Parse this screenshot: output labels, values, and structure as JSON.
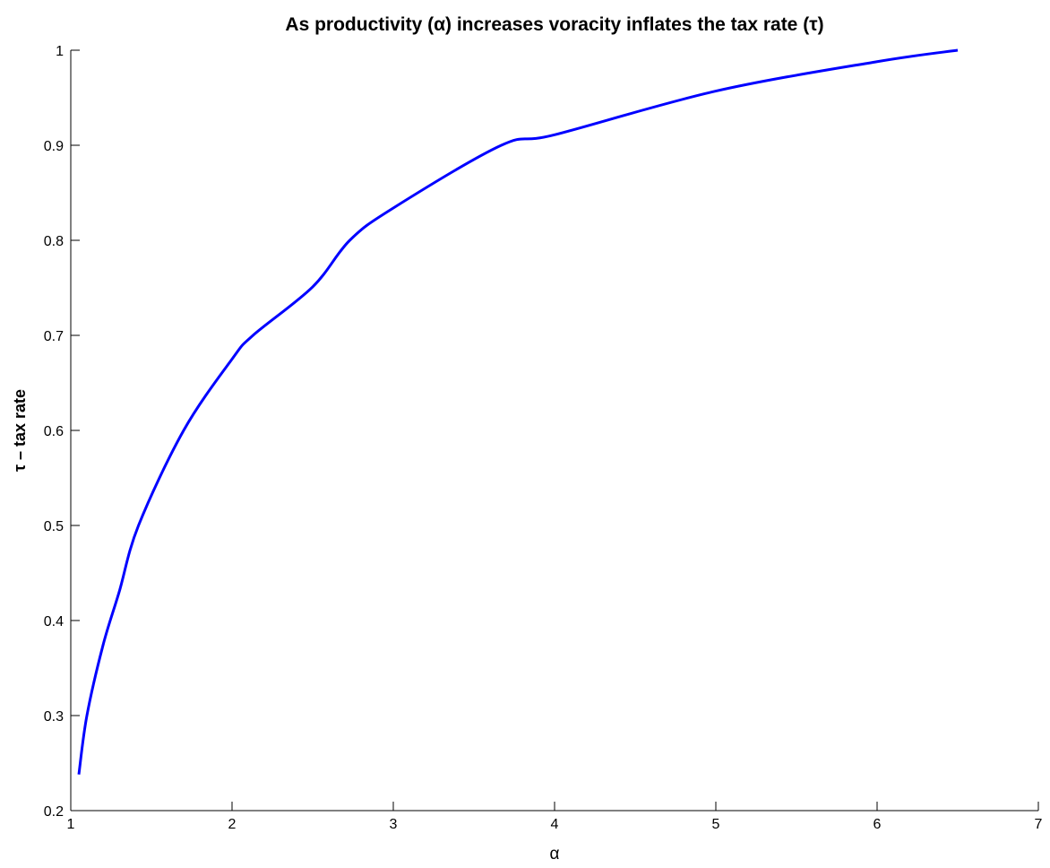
{
  "chart_data": {
    "type": "line",
    "title": "As productivity (α) increases voracity inflates the tax rate (τ)",
    "x_label": "α",
    "y_label": "τ – tax rate",
    "x": [
      1.05,
      1.1,
      1.2,
      1.3,
      1.42,
      1.7,
      2,
      2.13,
      2.5,
      2.73,
      3,
      3.67,
      4,
      5,
      6,
      6.5
    ],
    "series": [
      {
        "color": "#0000ff",
        "values": [
          0.238,
          0.3,
          0.374,
          0.43,
          0.5,
          0.6,
          0.675,
          0.7,
          0.751,
          0.8,
          0.834,
          0.9,
          0.911,
          0.957,
          0.988,
          1.0
        ]
      }
    ],
    "xlim": [
      1,
      7
    ],
    "xticks": [
      1,
      2,
      3,
      4,
      5,
      6,
      7
    ],
    "ylim": [
      0.2,
      1
    ],
    "yticks": [
      0.2,
      0.3,
      0.4,
      0.5,
      0.6,
      0.7,
      0.8,
      0.9,
      1
    ],
    "grid": false
  }
}
